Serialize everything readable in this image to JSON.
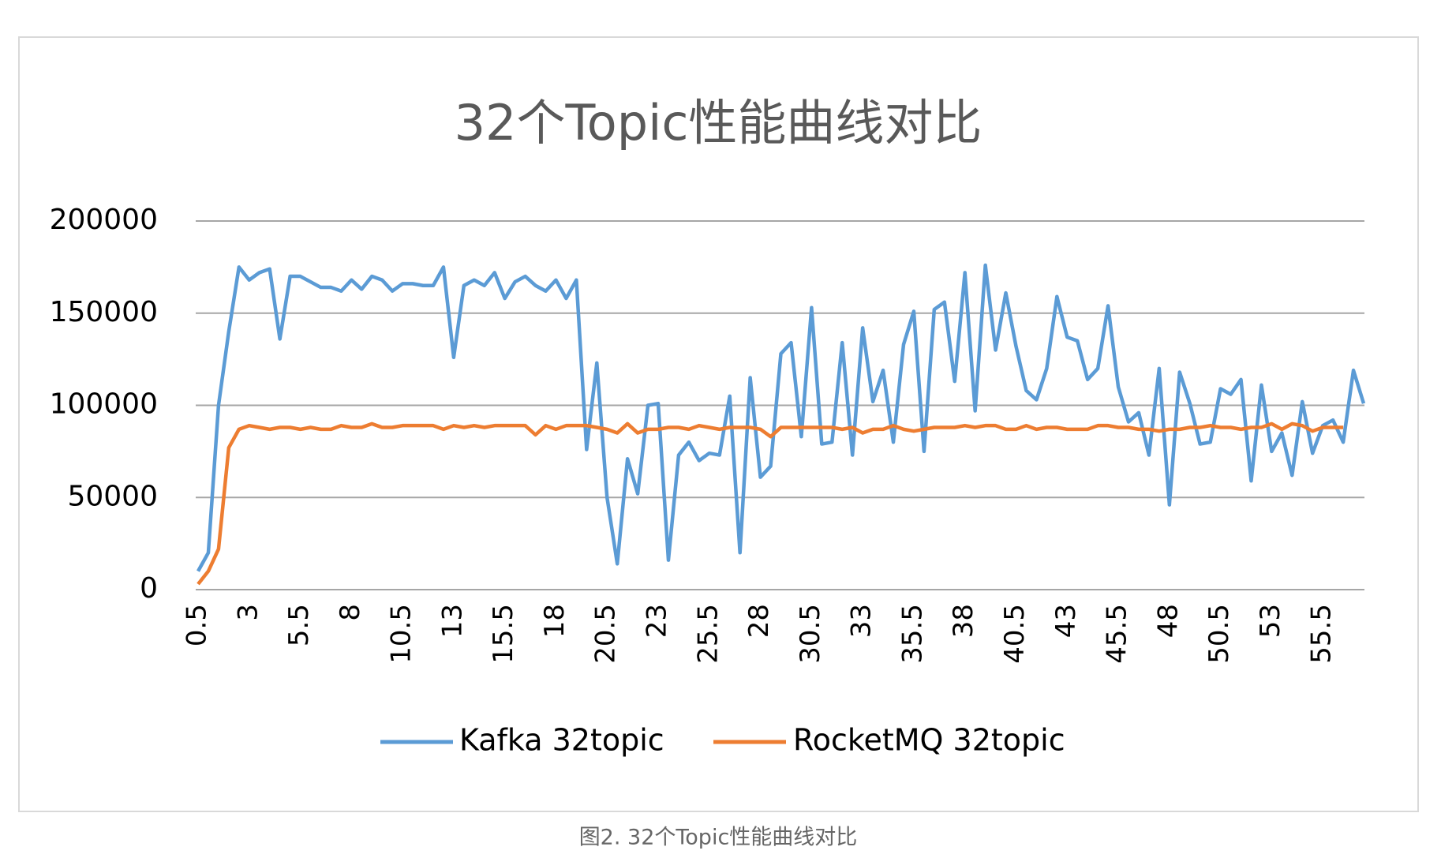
{
  "chart_data": {
    "type": "line",
    "title": "32个Topic性能曲线对比",
    "caption": "图2. 32个Topic性能曲线对比",
    "categories": [
      "0.5",
      null,
      null,
      null,
      null,
      "3",
      null,
      null,
      null,
      null,
      "5.5",
      null,
      null,
      null,
      null,
      "8",
      null,
      null,
      null,
      null,
      "10.5",
      null,
      null,
      null,
      null,
      "13",
      null,
      null,
      null,
      null,
      "15.5",
      null,
      null,
      null,
      null,
      "18",
      null,
      null,
      null,
      null,
      "20.5",
      null,
      null,
      null,
      null,
      "23",
      null,
      null,
      null,
      null,
      "25.5",
      null,
      null,
      null,
      null,
      "28",
      null,
      null,
      null,
      null,
      "30.5",
      null,
      null,
      null,
      null,
      "33",
      null,
      null,
      null,
      null,
      "35.5",
      null,
      null,
      null,
      null,
      "38",
      null,
      null,
      null,
      null,
      "40.5",
      null,
      null,
      null,
      null,
      "43",
      null,
      null,
      null,
      null,
      "45.5",
      null,
      null,
      null,
      null,
      "48",
      null,
      null,
      null,
      null,
      "50.5",
      null,
      null,
      null,
      null,
      "53",
      null,
      null,
      null,
      null,
      "55.5",
      null,
      null,
      null,
      null
    ],
    "series": [
      {
        "name": "Kafka 32topic",
        "color": "#5b9bd5",
        "values": [
          10000,
          20000,
          100000,
          140000,
          175000,
          168000,
          172000,
          174000,
          136000,
          170000,
          170000,
          167000,
          164000,
          164000,
          162000,
          168000,
          163000,
          170000,
          168000,
          162000,
          166000,
          166000,
          165000,
          165000,
          175000,
          126000,
          165000,
          168000,
          165000,
          172000,
          158000,
          167000,
          170000,
          165000,
          162000,
          168000,
          158000,
          168000,
          76000,
          123000,
          50000,
          14000,
          71000,
          52000,
          100000,
          101000,
          16000,
          73000,
          80000,
          70000,
          74000,
          73000,
          105000,
          20000,
          115000,
          61000,
          67000,
          128000,
          134000,
          83000,
          153000,
          79000,
          80000,
          134000,
          73000,
          142000,
          102000,
          119000,
          80000,
          133000,
          151000,
          75000,
          152000,
          156000,
          113000,
          172000,
          97000,
          176000,
          130000,
          161000,
          132000,
          108000,
          103000,
          120000,
          159000,
          137000,
          135000,
          114000,
          120000,
          154000,
          110000,
          91000,
          96000,
          73000,
          120000,
          46000,
          118000,
          101000,
          79000,
          80000,
          109000,
          106000,
          114000,
          59000,
          111000,
          75000,
          85000,
          62000,
          102000,
          74000,
          89000,
          92000,
          80000,
          119000,
          101000
        ]
      },
      {
        "name": "RocketMQ 32topic",
        "color": "#ed7d31",
        "values": [
          3000,
          10000,
          22000,
          77000,
          87000,
          89000,
          88000,
          87000,
          88000,
          88000,
          87000,
          88000,
          87000,
          87000,
          89000,
          88000,
          88000,
          90000,
          88000,
          88000,
          89000,
          89000,
          89000,
          89000,
          87000,
          89000,
          88000,
          89000,
          88000,
          89000,
          89000,
          89000,
          89000,
          84000,
          89000,
          87000,
          89000,
          89000,
          89000,
          88000,
          87000,
          85000,
          90000,
          85000,
          87000,
          87000,
          88000,
          88000,
          87000,
          89000,
          88000,
          87000,
          88000,
          88000,
          88000,
          87000,
          83000,
          88000,
          88000,
          88000,
          88000,
          88000,
          88000,
          87000,
          88000,
          85000,
          87000,
          87000,
          89000,
          87000,
          86000,
          87000,
          88000,
          88000,
          88000,
          89000,
          88000,
          89000,
          89000,
          87000,
          87000,
          89000,
          87000,
          88000,
          88000,
          87000,
          87000,
          87000,
          89000,
          89000,
          88000,
          88000,
          87000,
          87000,
          86000,
          87000,
          87000,
          88000,
          88000,
          89000,
          88000,
          88000,
          87000,
          88000,
          88000,
          90000,
          87000,
          90000,
          89000,
          86000,
          88000,
          88000,
          88000,
          null,
          null
        ]
      }
    ],
    "ylim": [
      0,
      200000
    ],
    "yticks": [
      0,
      50000,
      100000,
      150000,
      200000
    ],
    "grid": true,
    "legend": "bottom"
  }
}
